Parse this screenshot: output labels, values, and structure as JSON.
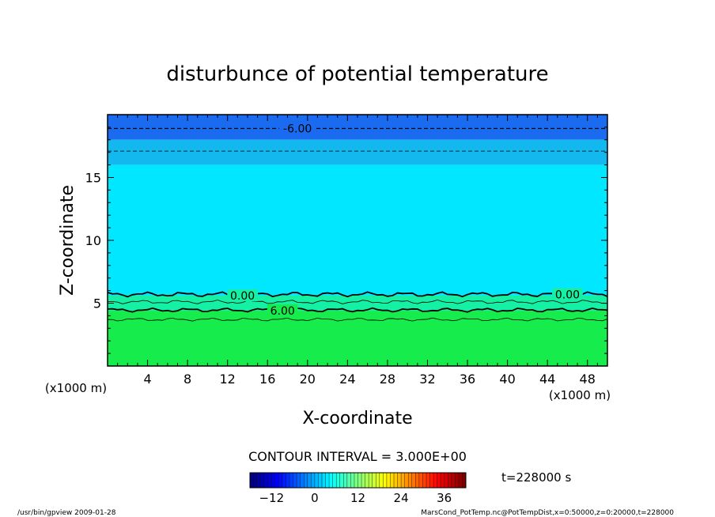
{
  "chart_data": {
    "type": "heatmap",
    "title": "disturbunce of potential temperature",
    "xlabel": "X-coordinate",
    "ylabel": "Z-coordinate",
    "x_unit_left": "(x1000 m)",
    "x_unit_right": "(x1000 m)",
    "xlim": [
      0,
      50
    ],
    "ylim": [
      0,
      20
    ],
    "x_ticks": [
      4,
      8,
      12,
      16,
      20,
      24,
      28,
      32,
      36,
      40,
      44,
      48
    ],
    "y_ticks": [
      5,
      10,
      15
    ],
    "x_tick_labels": [
      "4",
      "8",
      "12",
      "16",
      "20",
      "24",
      "28",
      "32",
      "36",
      "40",
      "44",
      "48"
    ],
    "y_tick_labels": [
      "5",
      "10",
      "15"
    ],
    "contour_labels": [
      {
        "text": "-6.00",
        "x": 19,
        "z": 18.9
      },
      {
        "text": "0.00",
        "x": 13.5,
        "z": 5.6
      },
      {
        "text": "0.00",
        "x": 46,
        "z": 5.7
      },
      {
        "text": "6.00",
        "x": 17.5,
        "z": 4.4
      }
    ],
    "contour_interval_label": "CONTOUR INTERVAL = 3.000E+00",
    "time_label": "t=228000 s",
    "colorbar": {
      "range": [
        -18,
        42
      ],
      "tick_values": [
        -12,
        0,
        12,
        24,
        36
      ],
      "tick_labels": [
        "−12",
        "0",
        "12",
        "24",
        "36"
      ]
    },
    "color_zones": [
      {
        "z_from": 18.0,
        "z_to": 20.0,
        "color": "#1a6bf0"
      },
      {
        "z_from": 16.0,
        "z_to": 18.0,
        "color": "#13b8ee"
      },
      {
        "z_from": 5.6,
        "z_to": 16.0,
        "color": "#00e7ff"
      },
      {
        "z_from": 4.4,
        "z_to": 5.6,
        "color": "#14f0a4"
      },
      {
        "z_from": 0.0,
        "z_to": 4.4,
        "color": "#17ec4d"
      }
    ]
  },
  "footer": {
    "left": "/usr/bin/gpview   2009-01-28",
    "right": "MarsCond_PotTemp.nc@PotTempDist,x=0:50000,z=0:20000,t=228000"
  },
  "colors": {
    "frame": "#000000",
    "contour": "#000000"
  }
}
